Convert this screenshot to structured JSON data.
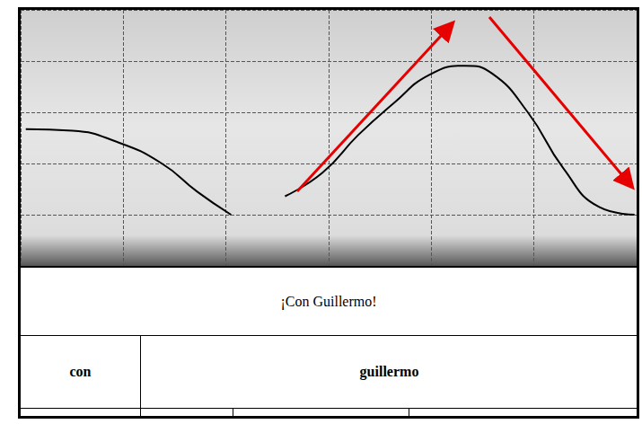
{
  "chart_data": {
    "type": "line",
    "x": [
      10,
      101,
      188,
      275,
      344,
      410,
      463,
      515,
      588,
      657,
      727,
      796,
      866,
      918,
      988,
      1057,
      1127,
      1196
    ],
    "values": [
      267,
      264,
      242,
      200,
      145,
      100,
      null,
      136,
      182,
      255,
      318,
      373,
      391,
      376,
      300,
      191,
      115,
      100
    ],
    "color": "#000000",
    "xlim": [
      0,
      1200
    ],
    "xticks": [
      0,
      200,
      400,
      600,
      800,
      1000,
      1200
    ],
    "ylim": [
      0,
      500
    ],
    "yticks": [
      0,
      100,
      200,
      300,
      400,
      500
    ],
    "grid": true,
    "tick_labels": false
  },
  "tiers": {
    "utterance": "¡Con Guillermo!",
    "words": [
      "con",
      "guillermo"
    ]
  }
}
